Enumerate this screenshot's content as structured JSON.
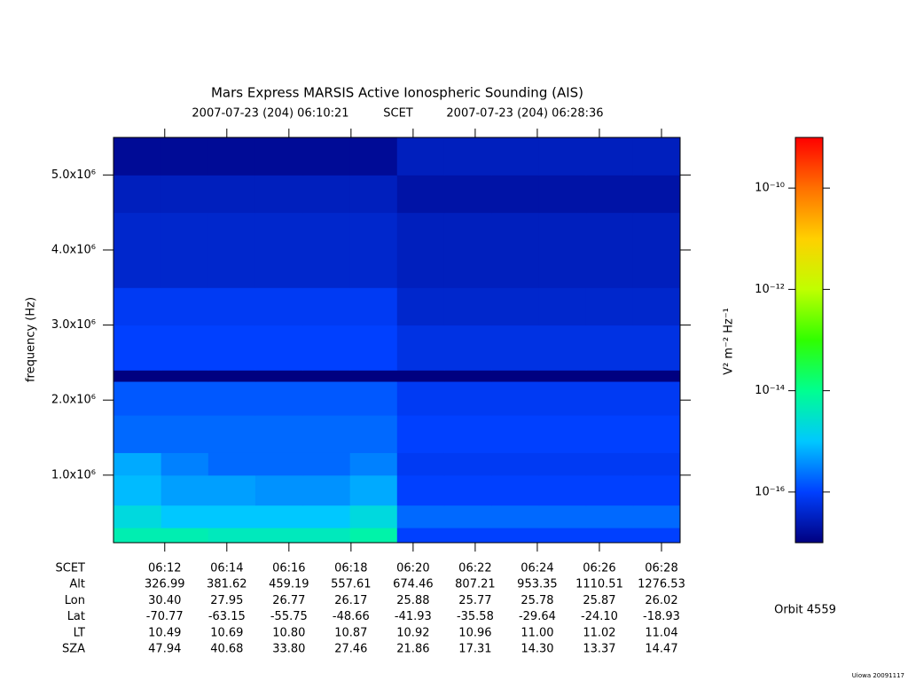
{
  "chart_data": {
    "type": "heatmap",
    "title": "Mars Express MARSIS Active Ionospheric Sounding (AIS)",
    "subtitle_start": "2007-07-23 (204) 06:10:21",
    "subtitle_mid": "SCET",
    "subtitle_end": "2007-07-23 (204) 06:28:36",
    "y_label": "frequency (Hz)",
    "colorbar_label": "V² m⁻² Hz⁻¹",
    "orbit": "Orbit 4559",
    "credit": "Uiowa 20091117",
    "xlim": [
      22221,
      23316
    ],
    "xticks": [
      {
        "value": 22320,
        "label": "06:12"
      },
      {
        "value": 22440,
        "label": "06:14"
      },
      {
        "value": 22560,
        "label": "06:16"
      },
      {
        "value": 22680,
        "label": "06:18"
      },
      {
        "value": 22800,
        "label": "06:20"
      },
      {
        "value": 22920,
        "label": "06:22"
      },
      {
        "value": 23040,
        "label": "06:24"
      },
      {
        "value": 23160,
        "label": "06:26"
      },
      {
        "value": 23280,
        "label": "06:28"
      }
    ],
    "ylim": [
      100000,
      5500000
    ],
    "yticks": [
      {
        "value": 1000000,
        "label": "1.0x10⁶"
      },
      {
        "value": 2000000,
        "label": "2.0x10⁶"
      },
      {
        "value": 3000000,
        "label": "3.0x10⁶"
      },
      {
        "value": 4000000,
        "label": "4.0x10⁶"
      },
      {
        "value": 5000000,
        "label": "5.0x10⁶"
      }
    ],
    "zlim": [
      1e-17,
      1e-09
    ],
    "zlog": true,
    "zticks": [
      {
        "value": 1e-10,
        "label": "10⁻¹⁰"
      },
      {
        "value": 1e-12,
        "label": "10⁻¹²"
      },
      {
        "value": 1e-14,
        "label": "10⁻¹⁴"
      },
      {
        "value": 1e-16,
        "label": "10⁻¹⁶"
      }
    ],
    "colormap": [
      "#000080",
      "#0040ff",
      "#00c8ff",
      "#00ff90",
      "#30ff00",
      "#c0ff00",
      "#ffd000",
      "#ff7000",
      "#ff0000"
    ],
    "x_bins": [
      22221,
      22313,
      22404,
      22495,
      22586,
      22678,
      22769,
      22860,
      22951,
      23043,
      23134,
      23225,
      23316
    ],
    "y_bins": [
      100000,
      300000,
      600000,
      1000000,
      1300000,
      1800000,
      2250000,
      2400000,
      3000000,
      3500000,
      4500000,
      5000000,
      5500000
    ],
    "z": [
      [
        5e-15,
        5e-15,
        4e-15,
        4e-15,
        4e-15,
        6e-15,
        1e-16,
        1e-16,
        1e-16,
        1e-16,
        1e-16,
        1e-16
      ],
      [
        2e-15,
        1e-15,
        1e-15,
        1e-15,
        1e-15,
        2e-15,
        2e-16,
        2e-16,
        2e-16,
        2e-16,
        2e-16,
        2e-16
      ],
      [
        8e-16,
        5e-16,
        5e-16,
        4e-16,
        4e-16,
        6e-16,
        1e-16,
        1e-16,
        1e-16,
        1e-16,
        1e-16,
        1e-16
      ],
      [
        6e-16,
        3e-16,
        2e-16,
        2e-16,
        2e-16,
        3e-16,
        8e-17,
        8e-17,
        8e-17,
        8e-17,
        8e-17,
        8e-17
      ],
      [
        2e-16,
        2e-16,
        2e-16,
        2e-16,
        2e-16,
        2e-16,
        1e-16,
        1e-16,
        1e-16,
        1e-16,
        1e-16,
        1e-16
      ],
      [
        1.5e-16,
        1.5e-16,
        1.5e-16,
        1.5e-16,
        1.5e-16,
        1.5e-16,
        8e-17,
        8e-17,
        8e-17,
        8e-17,
        8e-17,
        8e-17
      ],
      [
        1e-17,
        1e-17,
        1e-17,
        1e-17,
        1e-17,
        1e-17,
        1e-17,
        1e-17,
        1e-17,
        1e-17,
        1e-17,
        1e-17
      ],
      [
        1e-16,
        1e-16,
        1e-16,
        1e-16,
        1e-16,
        1e-16,
        6e-17,
        6e-17,
        6e-17,
        6e-17,
        6e-17,
        6e-17
      ],
      [
        8e-17,
        8e-17,
        8e-17,
        8e-17,
        8e-17,
        8e-17,
        4e-17,
        4e-17,
        4e-17,
        4e-17,
        4e-17,
        4e-17
      ],
      [
        4e-17,
        4e-17,
        4e-17,
        4e-17,
        4e-17,
        4e-17,
        3e-17,
        3e-17,
        3e-17,
        3e-17,
        3e-17,
        3e-17
      ],
      [
        3e-17,
        3e-17,
        3e-17,
        3e-17,
        3e-17,
        3e-17,
        2e-17,
        2e-17,
        2e-17,
        2e-17,
        2e-17,
        2e-17
      ],
      [
        1.5e-17,
        1.5e-17,
        1.5e-17,
        1.5e-17,
        1.5e-17,
        1.5e-17,
        3e-17,
        3e-17,
        3e-17,
        3e-17,
        3e-17,
        3e-17
      ]
    ],
    "x_row_label": "SCET",
    "ephemeris": [
      {
        "name": "Alt",
        "values": [
          "326.99",
          "381.62",
          "459.19",
          "557.61",
          "674.46",
          "807.21",
          "953.35",
          "1110.51",
          "1276.53"
        ]
      },
      {
        "name": "Lon",
        "values": [
          "30.40",
          "27.95",
          "26.77",
          "26.17",
          "25.88",
          "25.77",
          "25.78",
          "25.87",
          "26.02"
        ]
      },
      {
        "name": "Lat",
        "values": [
          "-70.77",
          "-63.15",
          "-55.75",
          "-48.66",
          "-41.93",
          "-35.58",
          "-29.64",
          "-24.10",
          "-18.93"
        ]
      },
      {
        "name": "LT",
        "values": [
          "10.49",
          "10.69",
          "10.80",
          "10.87",
          "10.92",
          "10.96",
          "11.00",
          "11.02",
          "11.04"
        ]
      },
      {
        "name": "SZA",
        "values": [
          "47.94",
          "40.68",
          "33.80",
          "27.46",
          "21.86",
          "17.31",
          "14.30",
          "13.37",
          "14.47"
        ]
      }
    ]
  }
}
